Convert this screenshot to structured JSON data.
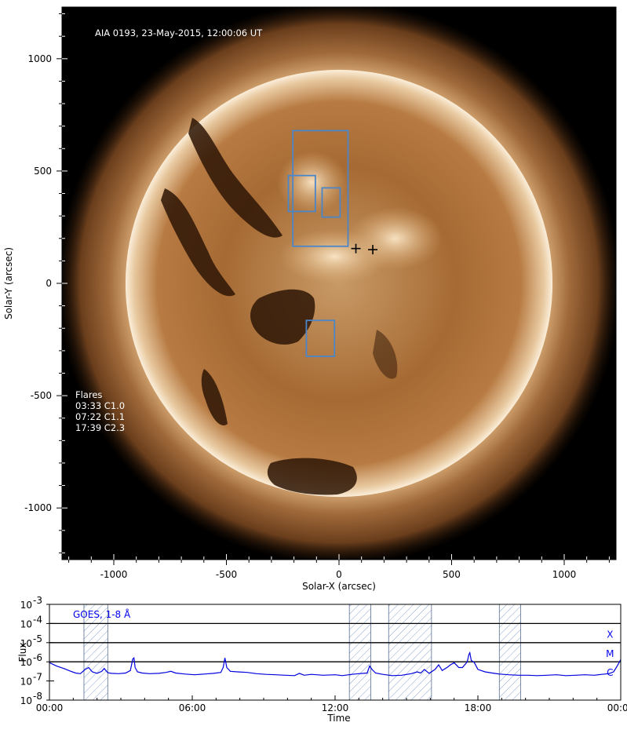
{
  "chart_data": [
    {
      "type": "image",
      "title": "AIA 0193, 23-May-2015, 12:00:06 UT",
      "xlabel": "Solar-X (arcsec)",
      "ylabel": "Solar-Y (arcsec)",
      "xlim": [
        -1230,
        1230
      ],
      "ylim": [
        -1230,
        1230
      ],
      "xticks": [
        -1000,
        -500,
        0,
        500,
        1000
      ],
      "yticks": [
        1000,
        500,
        0,
        -500,
        -1000
      ],
      "xtick_labels": [
        "-1000",
        "-500",
        "0",
        "500",
        "1000"
      ],
      "ytick_labels": [
        "1000",
        "500",
        "0",
        "-500",
        "-1000"
      ],
      "solar_radius_arcsec": 948,
      "regions": [
        {
          "x0": -205,
          "x1": 40,
          "y0": 165,
          "y1": 680
        },
        {
          "x0": -225,
          "x1": -105,
          "y0": 320,
          "y1": 480
        },
        {
          "x0": -75,
          "x1": 5,
          "y0": 295,
          "y1": 425
        },
        {
          "x0": -145,
          "x1": -20,
          "y0": -325,
          "y1": -165
        }
      ],
      "markers": [
        {
          "x": 75,
          "y": 155
        },
        {
          "x": 150,
          "y": 150
        }
      ],
      "flares_header": "Flares",
      "flares": [
        "03:33 C1.0",
        "07:22 C1.1",
        "17:39 C2.3"
      ],
      "colors": {
        "solar_bright": "#f4e6cf",
        "solar_mid": "#a86e3c",
        "solar_dark": "#3a1d0a",
        "corona": "#7a4a22",
        "box": "#4a86c8",
        "background": "#000000"
      }
    },
    {
      "type": "line",
      "series_label": "GOES, 1-8 Å",
      "xlabel": "Time",
      "ylabel": "Flux",
      "log_scale_y": true,
      "ylim_exp": [
        -8,
        -3
      ],
      "ytick_base": "10",
      "ytick_exponents": [
        "-3",
        "-4",
        "-5",
        "-6",
        "-7",
        "-8"
      ],
      "xlim_hours": [
        0,
        24
      ],
      "xticks_hours": [
        0,
        6,
        12,
        18,
        24
      ],
      "xtick_labels": [
        "00:00",
        "06:00",
        "12:00",
        "18:00",
        "00:00"
      ],
      "class_levels": [
        {
          "label": "X",
          "exp": -4
        },
        {
          "label": "M",
          "exp": -5
        },
        {
          "label": "C",
          "exp": -6
        }
      ],
      "hatched_intervals_hours": [
        [
          1.45,
          2.45
        ],
        [
          12.6,
          13.5
        ],
        [
          14.25,
          16.05
        ],
        [
          18.9,
          19.8
        ]
      ],
      "series": [
        {
          "x": [
            0,
            0.3,
            0.6,
            0.9,
            1.1,
            1.3,
            1.5,
            1.65,
            1.8,
            2.0,
            2.2,
            2.3,
            2.45,
            2.6,
            2.9,
            3.2,
            3.4,
            3.5,
            3.55,
            3.6,
            3.7,
            3.9,
            4.2,
            4.6,
            4.9,
            5.1,
            5.3,
            5.7,
            6.1,
            6.5,
            6.9,
            7.2,
            7.3,
            7.37,
            7.45,
            7.6,
            7.9,
            8.3,
            8.7,
            9.1,
            9.5,
            9.9,
            10.3,
            10.5,
            10.7,
            11.0,
            11.5,
            12.0,
            12.3,
            12.7,
            13.0,
            13.35,
            13.45,
            13.55,
            13.7,
            14.0,
            14.4,
            14.8,
            15.2,
            15.45,
            15.6,
            15.75,
            15.95,
            16.2,
            16.35,
            16.5,
            16.7,
            16.85,
            17.0,
            17.2,
            17.35,
            17.55,
            17.62,
            17.66,
            17.72,
            17.85,
            18.0,
            18.3,
            18.6,
            18.9,
            19.3,
            19.7,
            20.1,
            20.5,
            20.9,
            21.3,
            21.7,
            22.1,
            22.5,
            22.9,
            23.2,
            23.5,
            23.7,
            23.85,
            24.0
          ],
          "y": [
            9e-07,
            6e-07,
            4.5e-07,
            3.2e-07,
            2.6e-07,
            2.4e-07,
            4e-07,
            5e-07,
            3e-07,
            2.5e-07,
            3.2e-07,
            4.5e-07,
            2.7e-07,
            2.5e-07,
            2.4e-07,
            2.6e-07,
            3.5e-07,
            1.4e-06,
            1.6e-06,
            5e-07,
            3e-07,
            2.6e-07,
            2.4e-07,
            2.5e-07,
            2.8e-07,
            3.2e-07,
            2.6e-07,
            2.3e-07,
            2.1e-07,
            2.3e-07,
            2.5e-07,
            2.8e-07,
            5e-07,
            1.6e-06,
            5e-07,
            3.2e-07,
            3e-07,
            2.8e-07,
            2.4e-07,
            2.2e-07,
            2.1e-07,
            2e-07,
            1.9e-07,
            2.5e-07,
            2e-07,
            2.2e-07,
            2e-07,
            2.1e-07,
            1.9e-07,
            2.2e-07,
            2.4e-07,
            2.6e-07,
            6e-07,
            4e-07,
            2.6e-07,
            2.2e-07,
            1.9e-07,
            2e-07,
            2.4e-07,
            3e-07,
            2.6e-07,
            4e-07,
            2.5e-07,
            4e-07,
            7e-07,
            3.5e-07,
            5e-07,
            7e-07,
            9e-07,
            5e-07,
            5e-07,
            1e-06,
            2.4e-06,
            3e-06,
            1.2e-06,
            9e-07,
            4e-07,
            3e-07,
            2.6e-07,
            2.3e-07,
            2.1e-07,
            2e-07,
            2e-07,
            1.9e-07,
            2e-07,
            2.1e-07,
            1.9e-07,
            2e-07,
            2.1e-07,
            2e-07,
            2.2e-07,
            2.4e-07,
            3e-07,
            6e-07,
            1.3e-06
          ]
        }
      ],
      "colors": {
        "line": "#0000dd",
        "hatch": "#8aa4cc",
        "label": "#0000ee"
      }
    }
  ]
}
